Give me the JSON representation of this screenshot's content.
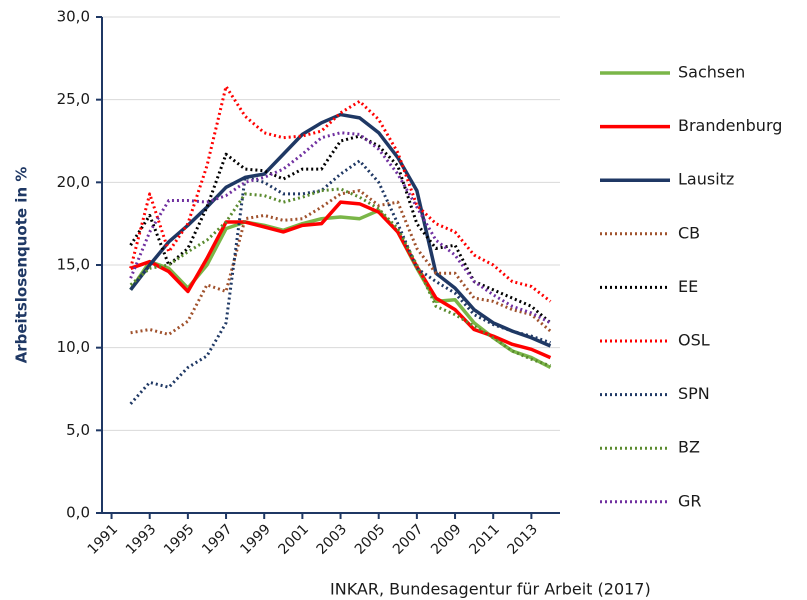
{
  "chart_data": {
    "type": "line",
    "y_label": "Arbeitslosenquote in %",
    "source": "INKAR, Bundesagentur für Arbeit (2017)",
    "x": [
      1992,
      1993,
      1994,
      1995,
      1996,
      1997,
      1998,
      1999,
      2000,
      2001,
      2002,
      2003,
      2004,
      2005,
      2006,
      2007,
      2008,
      2009,
      2010,
      2011,
      2012,
      2013,
      2014
    ],
    "xlim": [
      1990.5,
      2014.5
    ],
    "xticks": [
      1991,
      1993,
      1995,
      1997,
      1999,
      2001,
      2003,
      2005,
      2007,
      2009,
      2011,
      2013
    ],
    "ylim": [
      0,
      30
    ],
    "yticks": [
      {
        "value": 0,
        "label": "0,0"
      },
      {
        "value": 5,
        "label": "5,0"
      },
      {
        "value": 10,
        "label": "10,0"
      },
      {
        "value": 15,
        "label": "15,0"
      },
      {
        "value": 20,
        "label": "20,0"
      },
      {
        "value": 25,
        "label": "25,0"
      },
      {
        "value": 30,
        "label": "30,0"
      }
    ],
    "grid": true,
    "legend": "right",
    "series": [
      {
        "name": "Sachsen",
        "color": "#7ab648",
        "style": "solid",
        "values": [
          13.5,
          15.2,
          14.8,
          13.6,
          15.0,
          17.2,
          17.6,
          17.4,
          17.1,
          17.5,
          17.8,
          17.9,
          17.8,
          18.3,
          17.0,
          14.8,
          12.8,
          12.9,
          11.5,
          10.6,
          9.8,
          9.4,
          8.8
        ]
      },
      {
        "name": "Brandenburg",
        "color": "#ff0000",
        "style": "solid",
        "values": [
          14.8,
          15.2,
          14.6,
          13.4,
          15.4,
          17.6,
          17.6,
          17.3,
          17.0,
          17.4,
          17.5,
          18.8,
          18.7,
          18.2,
          17.0,
          14.9,
          13.0,
          12.3,
          11.1,
          10.7,
          10.2,
          9.9,
          9.4
        ]
      },
      {
        "name": "Lausitz",
        "color": "#1f3864",
        "style": "solid",
        "values": [
          13.5,
          15.0,
          16.4,
          17.4,
          18.5,
          19.7,
          20.3,
          20.5,
          21.7,
          22.9,
          23.6,
          24.1,
          23.9,
          23.0,
          21.5,
          19.5,
          14.5,
          13.6,
          12.3,
          11.5,
          11.0,
          10.6,
          10.1
        ]
      },
      {
        "name": "CB",
        "color": "#a0522d",
        "style": "dotted",
        "values": [
          10.9,
          11.1,
          10.8,
          11.6,
          13.8,
          13.4,
          17.8,
          18.0,
          17.7,
          17.8,
          18.5,
          19.3,
          19.5,
          18.6,
          18.8,
          16.0,
          14.5,
          14.5,
          13.0,
          12.8,
          12.3,
          12.0,
          11.0
        ]
      },
      {
        "name": "EE",
        "color": "#000000",
        "style": "dotted",
        "values": [
          16.2,
          18.0,
          15.0,
          16.0,
          18.5,
          21.7,
          20.8,
          20.7,
          20.2,
          20.8,
          20.8,
          22.5,
          22.8,
          22.2,
          21.0,
          17.5,
          16.0,
          16.2,
          14.0,
          13.5,
          13.0,
          12.5,
          11.5
        ]
      },
      {
        "name": "OSL",
        "color": "#ff0000",
        "style": "dotted",
        "values": [
          14.8,
          19.3,
          15.8,
          17.5,
          21.0,
          25.8,
          24.0,
          23.0,
          22.7,
          22.8,
          23.1,
          24.2,
          24.9,
          23.8,
          21.8,
          18.6,
          17.5,
          17.0,
          15.6,
          15.0,
          14.0,
          13.7,
          12.8
        ]
      },
      {
        "name": "SPN",
        "color": "#1f3864",
        "style": "dotted",
        "values": [
          6.6,
          7.9,
          7.6,
          8.8,
          9.5,
          11.5,
          20.3,
          20.0,
          19.3,
          19.3,
          19.5,
          20.5,
          21.3,
          20.0,
          17.5,
          14.8,
          14.0,
          13.3,
          12.0,
          11.4,
          11.0,
          10.7,
          10.3
        ]
      },
      {
        "name": "BZ",
        "color": "#5a8a2e",
        "style": "dotted",
        "values": [
          13.8,
          14.8,
          15.0,
          15.8,
          16.5,
          17.6,
          19.3,
          19.2,
          18.8,
          19.1,
          19.5,
          19.6,
          19.1,
          18.4,
          17.2,
          15.0,
          12.5,
          12.0,
          11.3,
          10.6,
          9.8,
          9.3,
          8.9
        ]
      },
      {
        "name": "GR",
        "color": "#7030a0",
        "style": "dotted",
        "values": [
          14.2,
          17.0,
          18.9,
          18.9,
          18.8,
          19.2,
          20.0,
          20.3,
          20.8,
          21.7,
          22.7,
          23.0,
          22.9,
          22.0,
          20.5,
          18.5,
          16.5,
          15.6,
          14.0,
          13.2,
          12.5,
          12.1,
          11.5
        ]
      }
    ]
  }
}
